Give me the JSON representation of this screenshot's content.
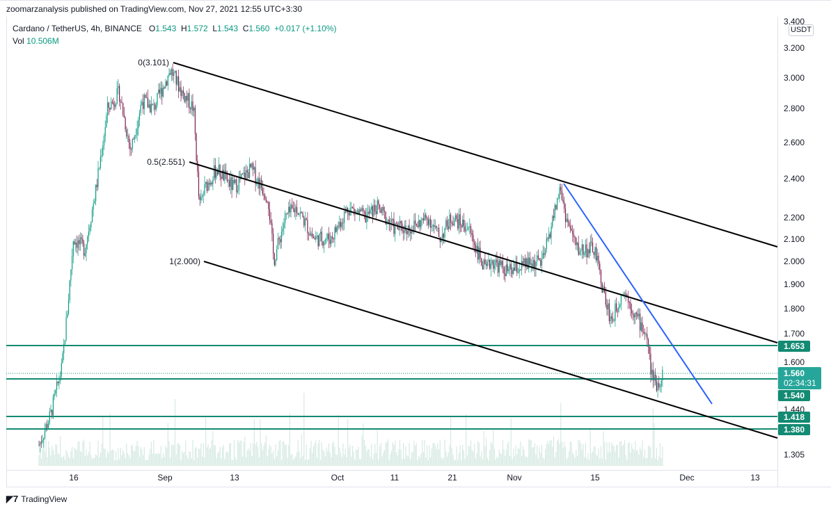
{
  "header": {
    "published": "zoomarzanalysis published on TradingView.com, Nov 27, 2021 12:55 UTC+3:30"
  },
  "legend": {
    "symbol": "Cardano / TetherUS, 4h, BINANCE",
    "open_label": "O",
    "open": "1.543",
    "high_label": "H",
    "high": "1.572",
    "low_label": "L",
    "low": "1.543",
    "close_label": "C",
    "close": "1.560",
    "change": "+0.017 (+1.10%)",
    "vol_label": "Vol",
    "vol": "10.506M"
  },
  "axis": {
    "currency": "USDT",
    "price_ticks": [
      "3.400",
      "3.200",
      "3.000",
      "2.800",
      "2.600",
      "2.400",
      "2.200",
      "2.100",
      "2.000",
      "1.900",
      "1.800",
      "1.700",
      "1.600",
      "1.440",
      "1.305"
    ],
    "time_ticks": [
      "16",
      "Sep",
      "13",
      "Oct",
      "11",
      "21",
      "Nov",
      "15",
      "Dec",
      "13"
    ]
  },
  "price_badges": {
    "level_1653": "1.653",
    "current": "1.560",
    "countdown": "02:34:31",
    "level_1540": "1.540",
    "level_1418": "1.418",
    "level_1380": "1.380"
  },
  "fib_labels": {
    "f0": "0(3.101)",
    "f05": "0.5(2.551)",
    "f1": "1(2.000)"
  },
  "colors": {
    "up": "#089981",
    "down": "#7a1d4a",
    "support": "#138a72",
    "trendline": "#2962ff",
    "channel": "#000000",
    "volume": "#d6e9e2"
  },
  "footer": {
    "brand": "TradingView"
  },
  "chart_data": {
    "type": "candlestick",
    "title": "Cardano / TetherUS, 4h, BINANCE",
    "ylabel": "USDT",
    "y_scale": "log",
    "ylim": [
      1.25,
      3.45
    ],
    "close_path": [
      [
        "Aug 10",
        1.33
      ],
      [
        "Aug 12",
        1.42
      ],
      [
        "Aug 14",
        1.58
      ],
      [
        "Aug 15",
        1.8
      ],
      [
        "Aug 16",
        2.1
      ],
      [
        "Aug 18",
        2.05
      ],
      [
        "Aug 20",
        2.35
      ],
      [
        "Aug 22",
        2.8
      ],
      [
        "Aug 24",
        2.9
      ],
      [
        "Aug 26",
        2.55
      ],
      [
        "Aug 28",
        2.85
      ],
      [
        "Aug 30",
        2.8
      ],
      [
        "Sep 2",
        3.05
      ],
      [
        "Sep 4",
        2.9
      ],
      [
        "Sep 6",
        2.8
      ],
      [
        "Sep 7",
        2.25
      ],
      [
        "Sep 8",
        2.35
      ],
      [
        "Sep 10",
        2.45
      ],
      [
        "Sep 13",
        2.35
      ],
      [
        "Sep 16",
        2.45
      ],
      [
        "Sep 19",
        2.3
      ],
      [
        "Sep 20",
        2.0
      ],
      [
        "Sep 22",
        2.2
      ],
      [
        "Sep 24",
        2.25
      ],
      [
        "Sep 27",
        2.1
      ],
      [
        "Sep 30",
        2.1
      ],
      [
        "Oct 3",
        2.25
      ],
      [
        "Oct 6",
        2.2
      ],
      [
        "Oct 8",
        2.25
      ],
      [
        "Oct 11",
        2.15
      ],
      [
        "Oct 14",
        2.15
      ],
      [
        "Oct 17",
        2.2
      ],
      [
        "Oct 19",
        2.1
      ],
      [
        "Oct 21",
        2.2
      ],
      [
        "Oct 24",
        2.15
      ],
      [
        "Oct 27",
        1.95
      ],
      [
        "Oct 28",
        2.0
      ],
      [
        "Oct 31",
        1.95
      ],
      [
        "Nov 3",
        1.98
      ],
      [
        "Nov 6",
        2.0
      ],
      [
        "Nov 9",
        2.35
      ],
      [
        "Nov 10",
        2.2
      ],
      [
        "Nov 12",
        2.05
      ],
      [
        "Nov 15",
        2.05
      ],
      [
        "Nov 17",
        1.82
      ],
      [
        "Nov 18",
        1.75
      ],
      [
        "Nov 20",
        1.88
      ],
      [
        "Nov 22",
        1.78
      ],
      [
        "Nov 24",
        1.7
      ],
      [
        "Nov 25",
        1.55
      ],
      [
        "Nov 26",
        1.52
      ],
      [
        "Nov 27",
        1.56
      ]
    ],
    "fib_channel": {
      "level_0": 3.101,
      "level_0_5": 2.551,
      "level_1": 2.0
    },
    "horizontal_levels": [
      1.653,
      1.54,
      1.418,
      1.38
    ],
    "current_price": 1.56
  }
}
